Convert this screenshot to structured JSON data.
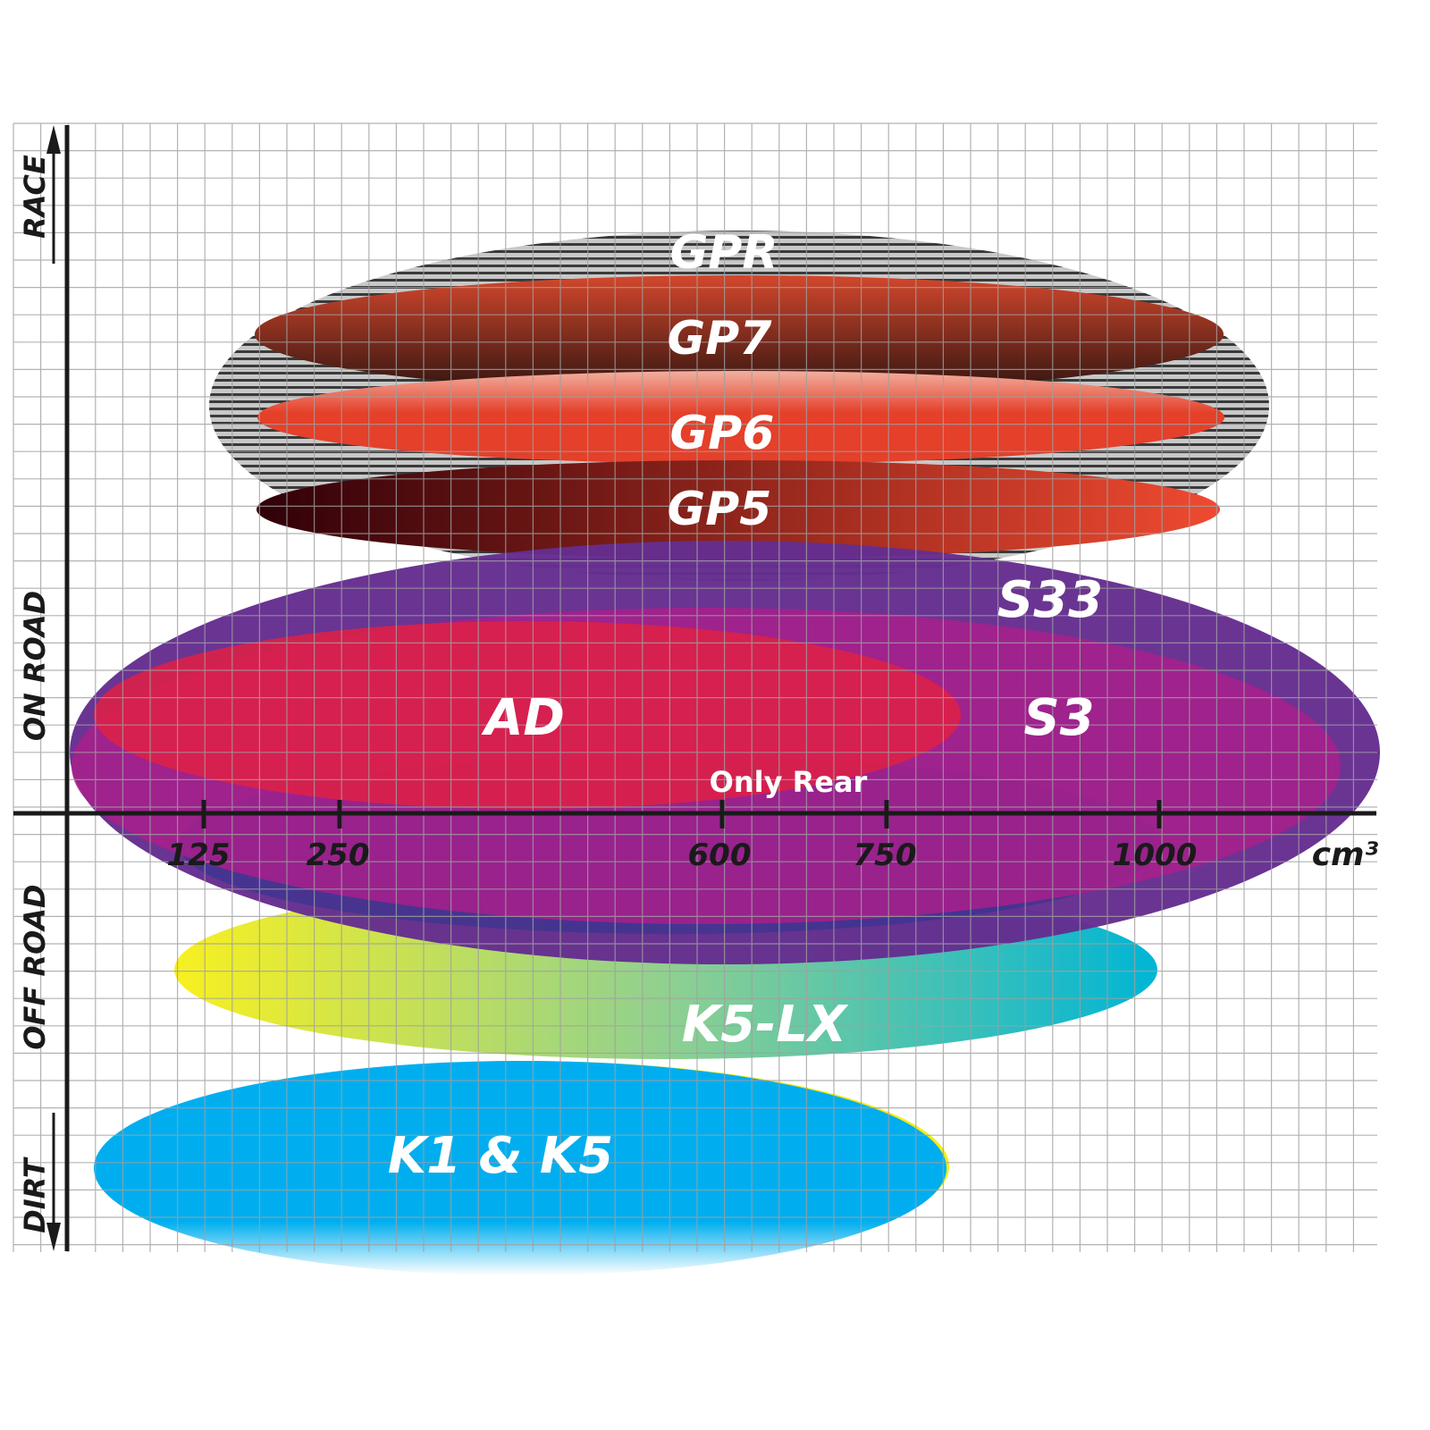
{
  "axes": {
    "x_unit": "cm³",
    "x_ticks": [
      "125",
      "250",
      "600",
      "750",
      "1000"
    ],
    "y_labels": [
      "RACE",
      "ON ROAD",
      "OFF ROAD",
      "DIRT"
    ]
  },
  "ranges": [
    {
      "name": "GPR",
      "color": "#9a9a9a"
    },
    {
      "name": "GP7",
      "color": "#7a2a1a"
    },
    {
      "name": "GP6",
      "color": "#e4402a"
    },
    {
      "name": "GP5",
      "color": "#8a1010"
    },
    {
      "name": "S33",
      "color": "#652d90"
    },
    {
      "name": "S3",
      "color": "#a0208a"
    },
    {
      "name": "AD",
      "color": "#d8204a"
    },
    {
      "name": "K5-LX",
      "color": "#00b5d0"
    },
    {
      "name": "K1 & K5",
      "color": "#00aeef"
    }
  ],
  "annotation": "Only Rear"
}
